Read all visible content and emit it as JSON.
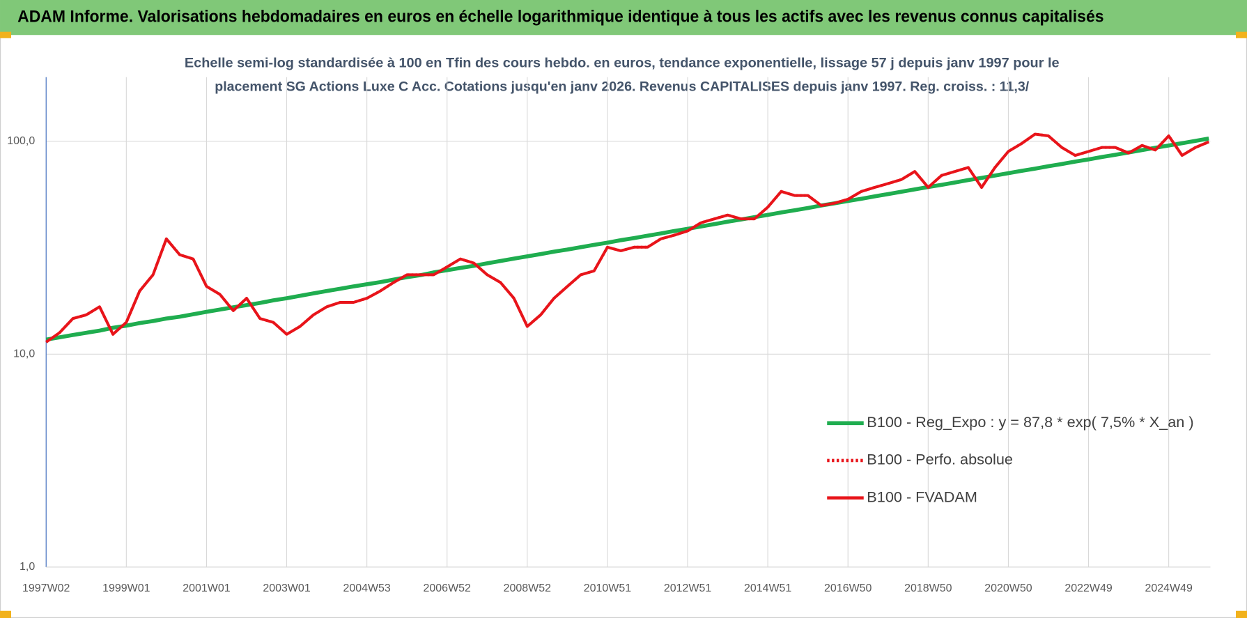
{
  "header": {
    "title": "ADAM Informe. Valorisations hebdomadaires en euros en échelle logarithmique identique à tous les actifs avec les revenus connus capitalisés"
  },
  "chart_data": {
    "type": "line",
    "title": [
      "Echelle semi-log standardisée à 100 en Tfin des cours hebdo. en euros, tendance exponentielle, lissage 57 j depuis janv 1997 pour le",
      "placement SG Actions Luxe C Acc. Cotations jusqu'en janv 2026. Revenus CAPITALISES depuis janv 1997. Reg. croiss. : 11,3/"
    ],
    "categories": [
      "1997W02",
      null,
      null,
      null,
      null,
      null,
      "1999W01",
      null,
      null,
      null,
      null,
      null,
      "2001W01",
      null,
      null,
      null,
      null,
      null,
      "2003W01",
      null,
      null,
      null,
      null,
      null,
      "2004W53",
      null,
      null,
      null,
      null,
      null,
      "2006W52",
      null,
      null,
      null,
      null,
      null,
      "2008W52",
      null,
      null,
      null,
      null,
      null,
      "2010W51",
      null,
      null,
      null,
      null,
      null,
      "2012W51",
      null,
      null,
      null,
      null,
      null,
      "2014W51",
      null,
      null,
      null,
      null,
      null,
      "2016W50",
      null,
      null,
      null,
      null,
      null,
      "2018W50",
      null,
      null,
      null,
      null,
      null,
      "2020W50",
      null,
      null,
      null,
      null,
      null,
      "2022W49",
      null,
      null,
      null,
      null,
      null,
      "2024W49",
      null,
      null,
      null
    ],
    "series": [
      {
        "name": "B100 - Reg_Expo : y = 87,8 * exp( 7,5% *  X_an )",
        "color": "#1fad4f",
        "style": "solid",
        "values": [
          11.7,
          12.0,
          12.3,
          12.6,
          12.9,
          13.3,
          13.6,
          14.0,
          14.3,
          14.7,
          15.0,
          15.4,
          15.8,
          16.2,
          16.6,
          17.0,
          17.4,
          17.9,
          18.3,
          18.8,
          19.3,
          19.8,
          20.3,
          20.8,
          21.3,
          21.8,
          22.4,
          23.0,
          23.5,
          24.2,
          24.8,
          25.4,
          26.0,
          26.7,
          27.4,
          28.1,
          28.8,
          29.5,
          30.3,
          31.0,
          31.8,
          32.6,
          33.4,
          34.3,
          35.1,
          36.0,
          36.9,
          37.9,
          38.8,
          39.8,
          40.8,
          41.9,
          42.9,
          44.0,
          45.1,
          46.3,
          47.4,
          48.6,
          49.9,
          51.1,
          52.4,
          53.7,
          55.1,
          56.5,
          57.9,
          59.4,
          60.9,
          62.4,
          64.0,
          65.7,
          67.3,
          69.0,
          70.8,
          72.6,
          74.4,
          76.3,
          78.2,
          80.2,
          82.2,
          84.3,
          86.4,
          88.6,
          90.9,
          93.2,
          95.5,
          97.9,
          100.4,
          103.0
        ]
      },
      {
        "name": "B100 - Perfo. absolue",
        "color": "#e8141a",
        "style": "dotted",
        "values": [
          11.4,
          12.6,
          14.7,
          15.3,
          16.7,
          12.4,
          14.1,
          19.8,
          23.6,
          34.8,
          29.3,
          28.0,
          20.8,
          19.1,
          16.0,
          18.3,
          14.7,
          14.1,
          12.4,
          13.5,
          15.3,
          16.7,
          17.5,
          17.5,
          18.3,
          19.8,
          21.7,
          23.6,
          23.6,
          23.6,
          25.7,
          28.0,
          26.8,
          23.6,
          21.7,
          18.3,
          13.5,
          15.3,
          18.3,
          20.8,
          23.6,
          24.6,
          31.8,
          30.6,
          31.8,
          31.8,
          34.8,
          36.2,
          37.9,
          41.4,
          43.2,
          45.0,
          43.2,
          43.2,
          49.0,
          58.1,
          55.6,
          55.6,
          49.9,
          51.2,
          53.4,
          58.1,
          60.7,
          63.3,
          66.1,
          72.1,
          60.7,
          69.1,
          72.1,
          75.3,
          60.7,
          75.3,
          89.6,
          97.6,
          108,
          106,
          93.5,
          85.8,
          89.6,
          93.5,
          93.5,
          88.0,
          95.5,
          91.0,
          106,
          85.8,
          93.5,
          99.3
        ]
      },
      {
        "name": "B100 - FVADAM",
        "color": "#e8141a",
        "style": "solid",
        "values": [
          11.4,
          12.6,
          14.7,
          15.3,
          16.7,
          12.4,
          14.1,
          19.8,
          23.6,
          34.8,
          29.3,
          28.0,
          20.8,
          19.1,
          16.0,
          18.3,
          14.7,
          14.1,
          12.4,
          13.5,
          15.3,
          16.7,
          17.5,
          17.5,
          18.3,
          19.8,
          21.7,
          23.6,
          23.6,
          23.6,
          25.7,
          28.0,
          26.8,
          23.6,
          21.7,
          18.3,
          13.5,
          15.3,
          18.3,
          20.8,
          23.6,
          24.6,
          31.8,
          30.6,
          31.8,
          31.8,
          34.8,
          36.2,
          37.9,
          41.4,
          43.2,
          45.0,
          43.2,
          43.2,
          49.0,
          58.1,
          55.6,
          55.6,
          49.9,
          51.2,
          53.4,
          58.1,
          60.7,
          63.3,
          66.1,
          72.1,
          60.7,
          69.1,
          72.1,
          75.3,
          60.7,
          75.3,
          89.6,
          97.6,
          108,
          106,
          93.5,
          85.8,
          89.6,
          93.5,
          93.5,
          88.0,
          95.5,
          91.0,
          106,
          85.8,
          93.5,
          99.3
        ]
      }
    ],
    "yscale": "log",
    "ylim": [
      1,
      200
    ],
    "yticks": [
      {
        "value": 1,
        "label": "1,0"
      },
      {
        "value": 10,
        "label": "10,0"
      },
      {
        "value": 100,
        "label": "100,0"
      }
    ],
    "grid": true,
    "legend": "lower right"
  }
}
